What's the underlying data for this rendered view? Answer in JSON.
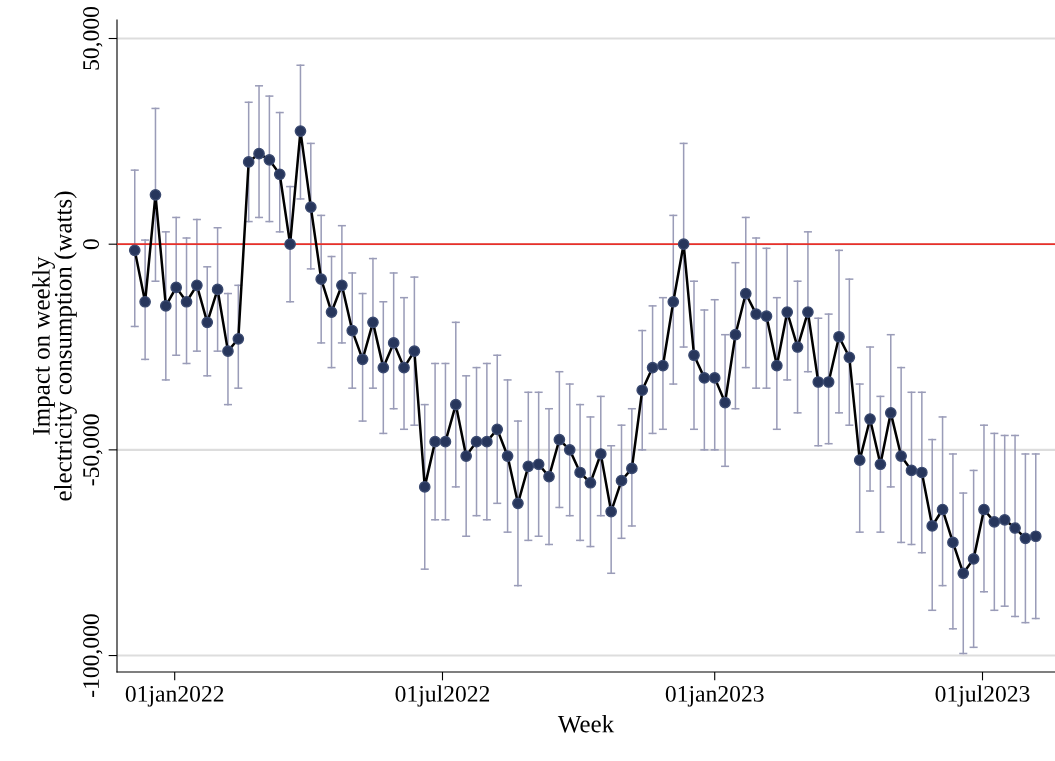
{
  "chart_data": {
    "type": "line",
    "xlabel": "Week",
    "ylabel": "Impact on weekly\nelectricity consumption (watts)",
    "x": [
      "2021-12-05",
      "2021-12-12",
      "2021-12-19",
      "2021-12-26",
      "2022-01-02",
      "2022-01-09",
      "2022-01-16",
      "2022-01-23",
      "2022-01-30",
      "2022-02-06",
      "2022-02-13",
      "2022-02-20",
      "2022-02-27",
      "2022-03-06",
      "2022-03-13",
      "2022-03-20",
      "2022-03-27",
      "2022-04-03",
      "2022-04-10",
      "2022-04-17",
      "2022-04-24",
      "2022-05-01",
      "2022-05-08",
      "2022-05-15",
      "2022-05-22",
      "2022-05-29",
      "2022-06-05",
      "2022-06-12",
      "2022-06-19",
      "2022-06-26",
      "2022-07-03",
      "2022-07-10",
      "2022-07-17",
      "2022-07-24",
      "2022-07-31",
      "2022-08-07",
      "2022-08-14",
      "2022-08-21",
      "2022-08-28",
      "2022-09-04",
      "2022-09-11",
      "2022-09-18",
      "2022-09-25",
      "2022-10-02",
      "2022-10-09",
      "2022-10-16",
      "2022-10-23",
      "2022-10-30",
      "2022-11-06",
      "2022-11-13",
      "2022-11-20",
      "2022-11-27",
      "2022-12-04",
      "2022-12-11",
      "2022-12-18",
      "2022-12-25",
      "2023-01-01",
      "2023-01-08",
      "2023-01-15",
      "2023-01-22",
      "2023-01-29",
      "2023-02-05",
      "2023-02-12",
      "2023-02-19",
      "2023-02-26",
      "2023-03-05",
      "2023-03-12",
      "2023-03-19",
      "2023-03-26",
      "2023-04-02",
      "2023-04-09",
      "2023-04-16",
      "2023-04-23",
      "2023-04-30",
      "2023-05-07",
      "2023-05-14",
      "2023-05-21",
      "2023-05-28",
      "2023-06-04",
      "2023-06-11",
      "2023-06-18",
      "2023-06-25",
      "2023-07-02",
      "2023-07-09",
      "2023-07-16",
      "2023-07-23",
      "2023-07-30",
      "2023-08-06"
    ],
    "series": [
      {
        "color": "#000000",
        "marker": "none",
        "values": [
          -1500,
          -14000,
          12000,
          -15000,
          -10500,
          -14000,
          -10000,
          -19000,
          -11000,
          -26000,
          -23000,
          20000,
          22000,
          20500,
          17000,
          0,
          27500,
          9000,
          -8500,
          -16500,
          -10000,
          -21000,
          -28000,
          -19000,
          -30000,
          -24000,
          -30000,
          -26000,
          -59000,
          -48000,
          -48000,
          -39000,
          -51500,
          -48000,
          -48000,
          -45000,
          -51500,
          -63000,
          -54000,
          -53500,
          -56500,
          -47500,
          -50000,
          -55500,
          -58000,
          -51000,
          -65000,
          -57500,
          -54500,
          -35500,
          -30000,
          -29500,
          -14000,
          0,
          -27000,
          -32500,
          -32500,
          -38500,
          -22000,
          -12000,
          -17000,
          -17500,
          -29500,
          -16500,
          -25000,
          -16500,
          -33500,
          -33500,
          -22500,
          -27500,
          -52500,
          -42500,
          -53500,
          -41000,
          -51500,
          -55000,
          -55500,
          -68500,
          -64500,
          -72500,
          -80000,
          -76500,
          -64500,
          -67500,
          -67000,
          -69000,
          -71500,
          -71000
        ]
      },
      {
        "type": "scatter",
        "color": "#27365c",
        "marker": "circle",
        "values": [
          -1500,
          -14000,
          12000,
          -15000,
          -10500,
          -14000,
          -10000,
          -19000,
          -11000,
          -26000,
          -23000,
          20000,
          22000,
          20500,
          17000,
          0,
          27500,
          9000,
          -8500,
          -16500,
          -10000,
          -21000,
          -28000,
          -19000,
          -30000,
          -24000,
          -30000,
          -26000,
          -59000,
          -48000,
          -48000,
          -39000,
          -51500,
          -48000,
          -48000,
          -45000,
          -51500,
          -63000,
          -54000,
          -53500,
          -56500,
          -47500,
          -50000,
          -55500,
          -58000,
          -51000,
          -65000,
          -57500,
          -54500,
          -35500,
          -30000,
          -29500,
          -14000,
          0,
          -27000,
          -32500,
          -32500,
          -38500,
          -22000,
          -12000,
          -17000,
          -17500,
          -29500,
          -16500,
          -25000,
          -16500,
          -33500,
          -33500,
          -22500,
          -27500,
          -52500,
          -42500,
          -53500,
          -41000,
          -51500,
          -55000,
          -55500,
          -68500,
          -64500,
          -72500,
          -80000,
          -76500,
          -64500,
          -67500,
          -67000,
          -69000,
          -71500,
          -71000
        ],
        "errors": [
          [
            -20000,
            18000
          ],
          [
            -28000,
            1000
          ],
          [
            -9000,
            33000
          ],
          [
            -33000,
            3000
          ],
          [
            -27000,
            6500
          ],
          [
            -29000,
            1500
          ],
          [
            -26000,
            6000
          ],
          [
            -32000,
            -5500
          ],
          [
            -26000,
            4000
          ],
          [
            -39000,
            -12000
          ],
          [
            -35000,
            -10000
          ],
          [
            5500,
            34500
          ],
          [
            6500,
            38500
          ],
          [
            5500,
            36000
          ],
          [
            3000,
            32000
          ],
          [
            -14000,
            14000
          ],
          [
            11000,
            43500
          ],
          [
            -6000,
            24500
          ],
          [
            -24000,
            7000
          ],
          [
            -30000,
            -3000
          ],
          [
            -24000,
            4500
          ],
          [
            -35000,
            -7000
          ],
          [
            -43000,
            -12000
          ],
          [
            -35000,
            -3500
          ],
          [
            -46000,
            -14000
          ],
          [
            -40000,
            -7000
          ],
          [
            -45000,
            -13000
          ],
          [
            -44000,
            -8000
          ],
          [
            -79000,
            -39000
          ],
          [
            -67000,
            -29000
          ],
          [
            -67000,
            -29000
          ],
          [
            -59000,
            -19000
          ],
          [
            -71000,
            -32000
          ],
          [
            -66000,
            -30000
          ],
          [
            -67000,
            -29000
          ],
          [
            -63000,
            -27000
          ],
          [
            -70000,
            -33000
          ],
          [
            -83000,
            -43000
          ],
          [
            -72000,
            -36000
          ],
          [
            -71000,
            -36000
          ],
          [
            -73000,
            -40000
          ],
          [
            -64000,
            -31000
          ],
          [
            -66000,
            -34000
          ],
          [
            -72000,
            -39000
          ],
          [
            -73500,
            -42000
          ],
          [
            -66000,
            -37000
          ],
          [
            -80000,
            -49000
          ],
          [
            -71500,
            -44000
          ],
          [
            -68500,
            -40000
          ],
          [
            -50000,
            -21000
          ],
          [
            -46000,
            -15000
          ],
          [
            -45000,
            -13000
          ],
          [
            -34000,
            7000
          ],
          [
            -25000,
            24500
          ],
          [
            -45000,
            -9000
          ],
          [
            -50000,
            -16000
          ],
          [
            -50000,
            -13500
          ],
          [
            -54000,
            -22000
          ],
          [
            -40000,
            -4500
          ],
          [
            -30000,
            6500
          ],
          [
            -35000,
            1500
          ],
          [
            -35000,
            -1000
          ],
          [
            -45000,
            -13000
          ],
          [
            -33000,
            0
          ],
          [
            -41000,
            -9000
          ],
          [
            -31000,
            3000
          ],
          [
            -49000,
            -18000
          ],
          [
            -48500,
            -17000
          ],
          [
            -41000,
            -1500
          ],
          [
            -44000,
            -8500
          ],
          [
            -70000,
            -34000
          ],
          [
            -60000,
            -25000
          ],
          [
            -70000,
            -37000
          ],
          [
            -59000,
            -22000
          ],
          [
            -72500,
            -30000
          ],
          [
            -73000,
            -36000
          ],
          [
            -75000,
            -36000
          ],
          [
            -89000,
            -47500
          ],
          [
            -83000,
            -42000
          ],
          [
            -93500,
            -51000
          ],
          [
            -99500,
            -60500
          ],
          [
            -98000,
            -55000
          ],
          [
            -84500,
            -44000
          ],
          [
            -89000,
            -46000
          ],
          [
            -88000,
            -46500
          ],
          [
            -90500,
            -46500
          ],
          [
            -92000,
            -51000
          ],
          [
            -91000,
            -51000
          ]
        ]
      }
    ],
    "xlim": [
      "2021-11-23",
      "2023-08-19"
    ],
    "xticks": [
      {
        "value": "2022-01-01",
        "label": "01jan2022"
      },
      {
        "value": "2022-07-01",
        "label": "01jul2022"
      },
      {
        "value": "2023-01-01",
        "label": "01jan2023"
      },
      {
        "value": "2023-07-01",
        "label": "01jul2023"
      }
    ],
    "ylim": [
      -104000,
      54500
    ],
    "yticks": [
      {
        "value": -100000,
        "label": "-100,000"
      },
      {
        "value": -50000,
        "label": "-50,000"
      },
      {
        "value": 0,
        "label": "0"
      },
      {
        "value": 50000,
        "label": "50,000"
      }
    ],
    "ref_lines": [
      {
        "axis": "y",
        "value": 0,
        "color": "#e8302a"
      }
    ],
    "grid": "y",
    "legend": false
  }
}
